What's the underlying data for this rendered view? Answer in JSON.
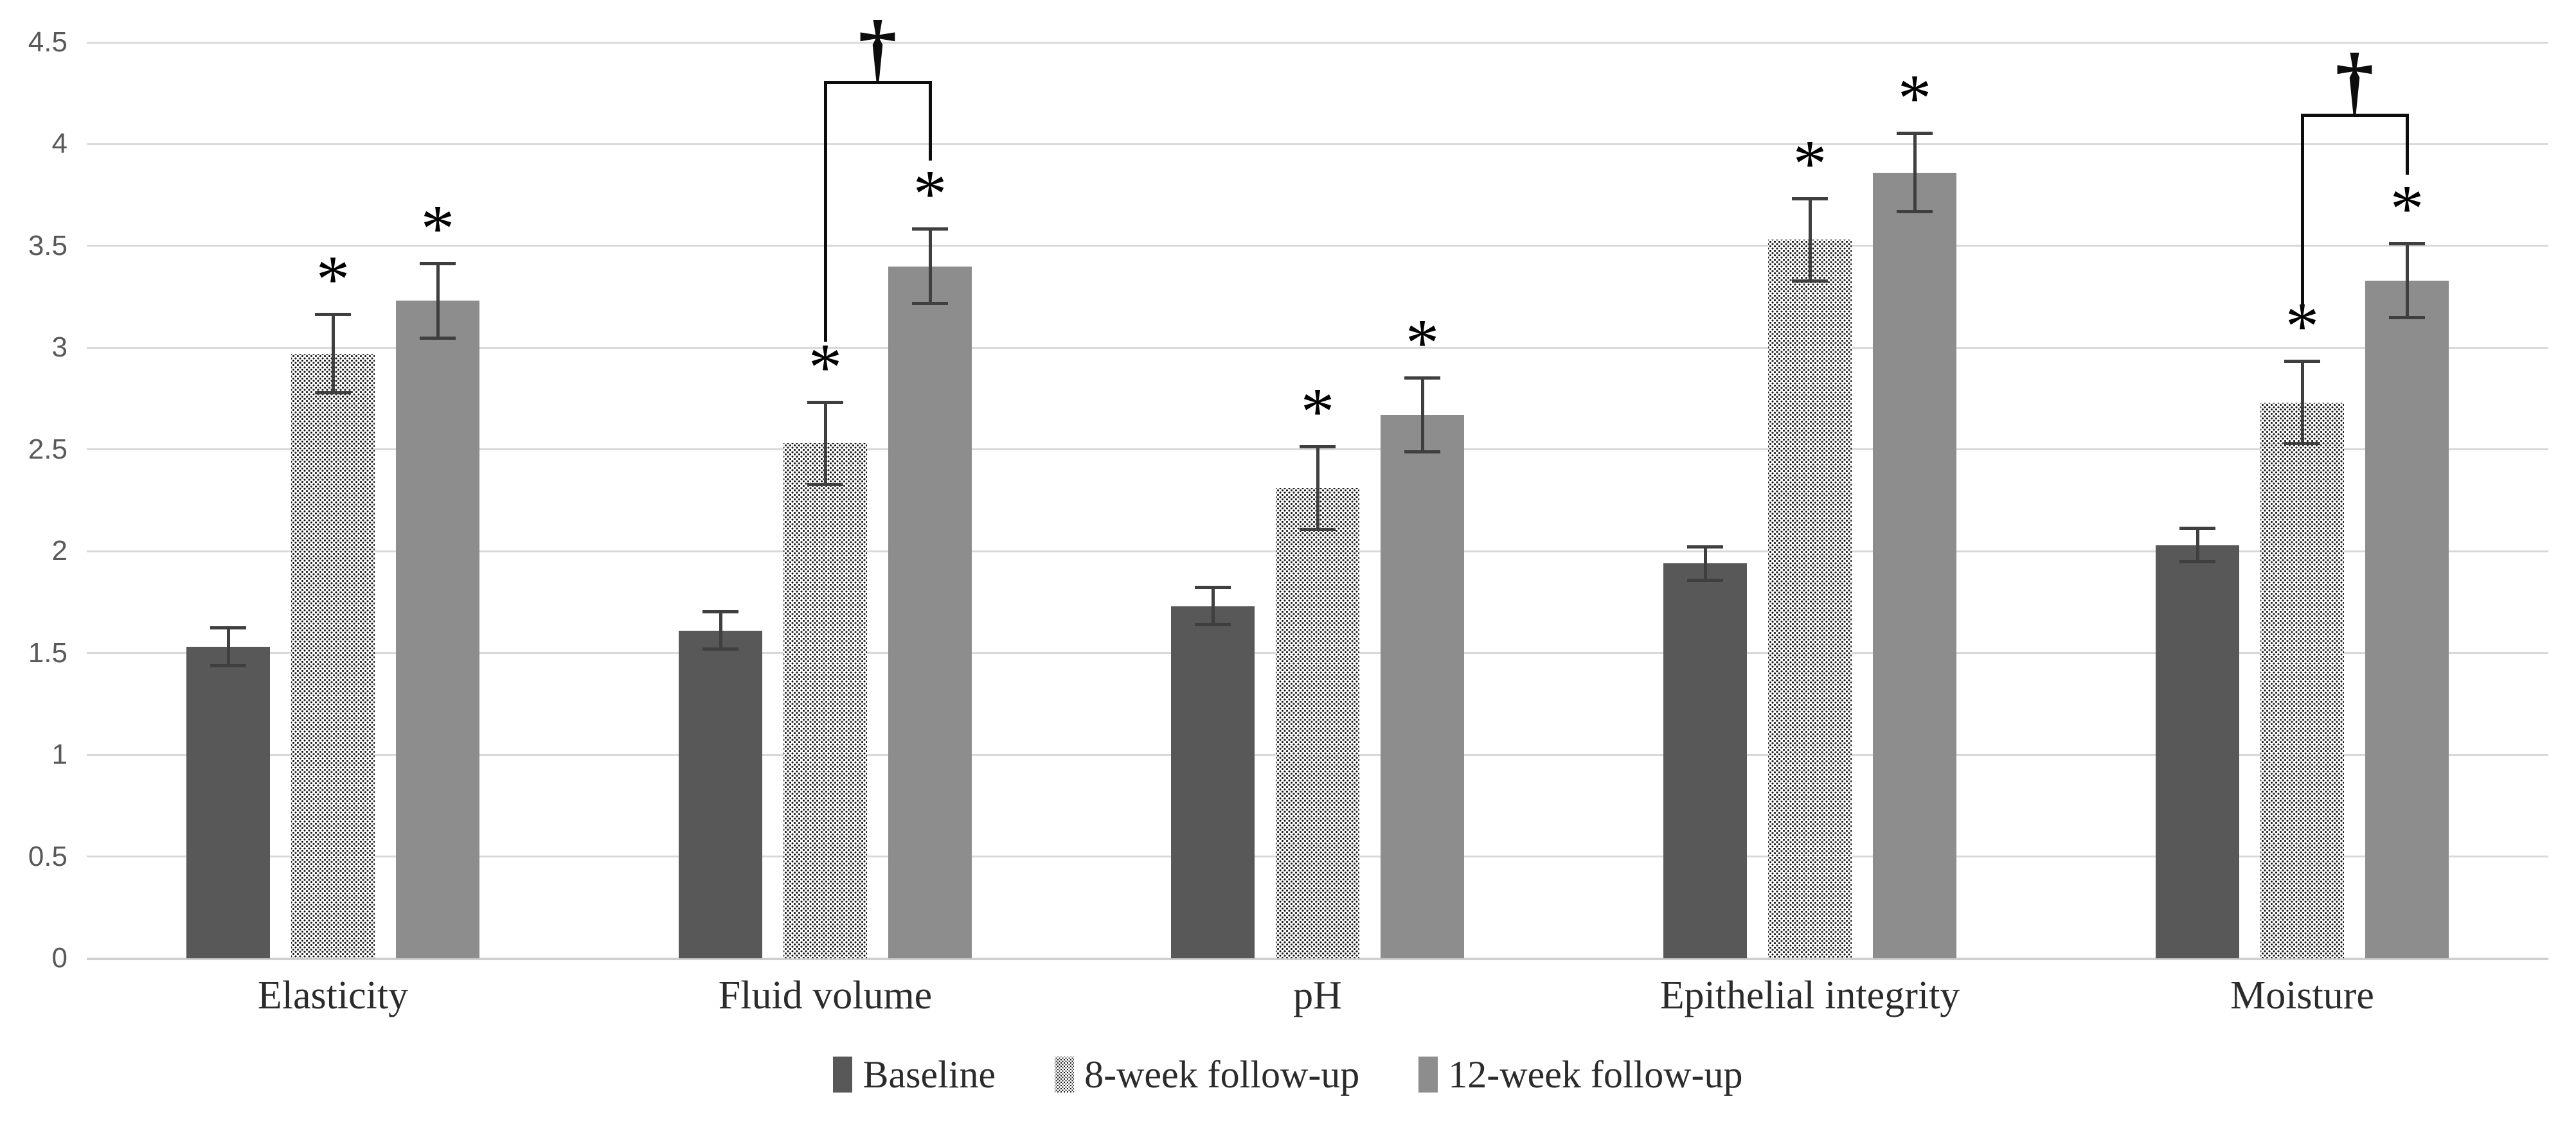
{
  "chart_data": {
    "type": "bar",
    "title": "",
    "xlabel": "",
    "ylabel": "",
    "categories": [
      "Elasticity",
      "Fluid volume",
      "pH",
      "Epithelial integrity",
      "Moisture"
    ],
    "series": [
      {
        "name": "Baseline",
        "style": "solid-dark",
        "color": "#585858",
        "values": [
          1.53,
          1.61,
          1.73,
          1.94,
          2.03
        ],
        "errors": [
          0.1,
          0.1,
          0.1,
          0.09,
          0.09
        ],
        "significance": [
          "",
          "",
          "",
          "",
          ""
        ]
      },
      {
        "name": "8-week follow-up",
        "style": "dotted-pattern",
        "color": "#ffffff",
        "pattern_color": "#161616",
        "values": [
          2.97,
          2.53,
          2.31,
          3.53,
          2.73
        ],
        "errors": [
          0.2,
          0.21,
          0.21,
          0.21,
          0.21
        ],
        "significance": [
          "*",
          "*",
          "*",
          "*",
          "*"
        ]
      },
      {
        "name": "12-week follow-up",
        "style": "solid-light",
        "color": "#8d8d8d",
        "values": [
          3.23,
          3.4,
          2.67,
          3.86,
          3.33
        ],
        "errors": [
          0.19,
          0.19,
          0.19,
          0.2,
          0.19
        ],
        "significance": [
          "*",
          "*",
          "*",
          "*",
          "*"
        ]
      }
    ],
    "y_axis": {
      "min": 0,
      "max": 4.5,
      "step": 0.5,
      "tick_labels_top_to_bottom": [
        "4.5",
        "4",
        "3.5",
        "3",
        "2.5",
        "2",
        "1.5",
        "1",
        "0.5",
        "0"
      ]
    },
    "grid": true,
    "legend_position": "bottom",
    "brackets": [
      {
        "symbol": "†",
        "category_index": 1,
        "from_series": 1,
        "to_series": 2,
        "top_value": 4.31,
        "left_end_value": 3.03,
        "right_end_value": 3.92
      },
      {
        "symbol": "†",
        "category_index": 4,
        "from_series": 1,
        "to_series": 2,
        "top_value": 4.15,
        "left_end_value": 3.2,
        "right_end_value": 3.85
      }
    ],
    "annotations_note_symbols": {
      "asterisk": "*",
      "dagger": "†"
    }
  },
  "colors": {
    "background": "#ffffff",
    "gridline": "#d9d9d9",
    "axis_line": "#cfcfcf",
    "error_bar": "#3f3f3f",
    "bracket": "#0d0d0d",
    "y_tick_text": "#595959",
    "category_text": "#2b2b2b",
    "legend_text": "#2b2b2b"
  }
}
